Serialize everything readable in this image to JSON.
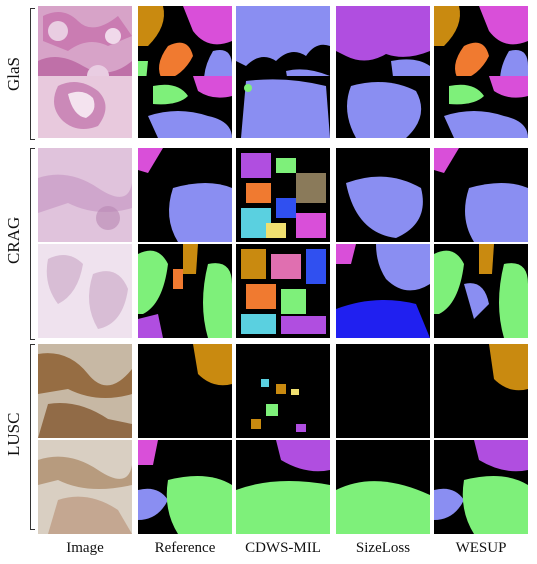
{
  "rows": [
    {
      "label": "GlaS"
    },
    {
      "label": "CRAG"
    },
    {
      "label": "LUSC"
    }
  ],
  "columns": [
    {
      "label": "Image"
    },
    {
      "label": "Reference"
    },
    {
      "label": "CDWS-MIL"
    },
    {
      "label": "SizeLoss"
    },
    {
      "label": "WESUP"
    }
  ],
  "colors": {
    "background": "#000000",
    "purple": "#b04ee0",
    "magenta": "#d94fd9",
    "lavender": "#8a8ef2",
    "green": "#7ef07a",
    "orange": "#f07a30",
    "brown": "#c98a10",
    "gland-pink": "#c67fb0",
    "stain-brown": "#8a5a2a"
  }
}
